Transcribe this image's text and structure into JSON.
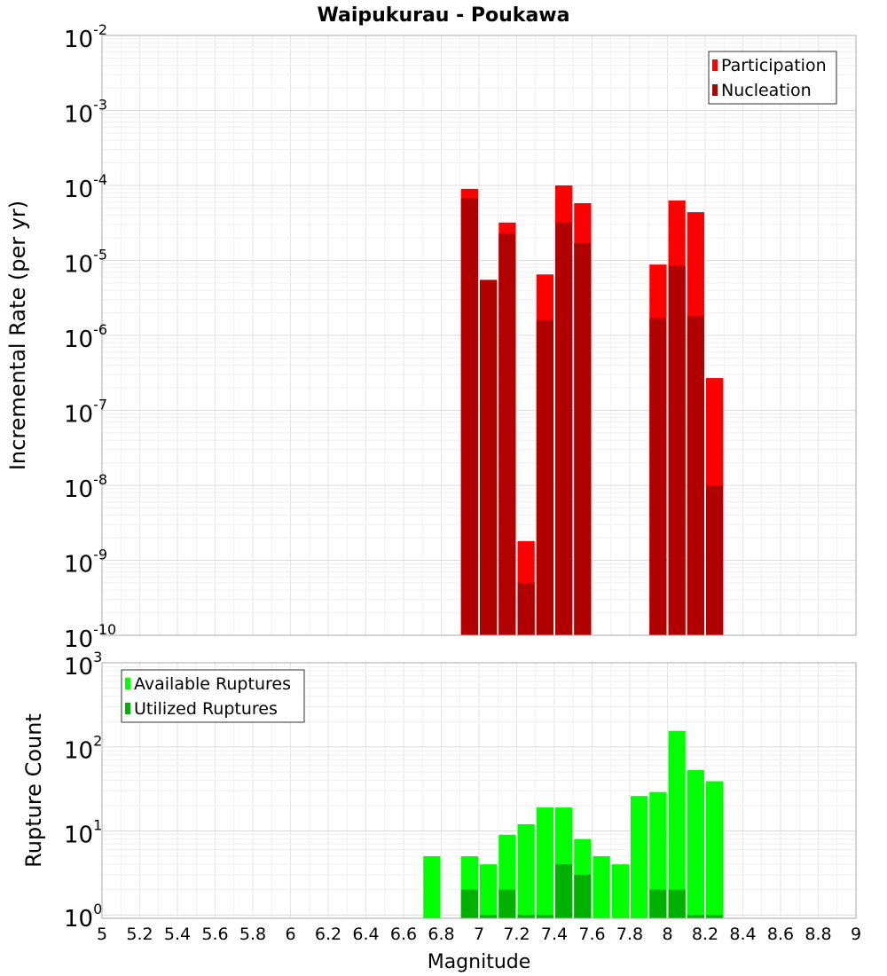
{
  "chart_data": [
    {
      "type": "bar",
      "title": "Waipukurau - Poukawa",
      "xlabel": "",
      "ylabel": "Incremental Rate (per yr)",
      "y_scale": "log",
      "ylim_exponents": [
        -10,
        -2
      ],
      "xlim": [
        5,
        9
      ],
      "grid": true,
      "legend_position": "top-right",
      "bar_width": 0.1,
      "y_tick_base": "10",
      "y_tick_exponents": [
        "-10",
        "-9",
        "-8",
        "-7",
        "-6",
        "-5",
        "-4",
        "-3",
        "-2"
      ],
      "series": [
        {
          "name": "Participation",
          "color": "#ff0000",
          "x": [
            6.95,
            7.05,
            7.15,
            7.25,
            7.35,
            7.45,
            7.55,
            7.95,
            8.05,
            8.15,
            8.25
          ],
          "values": [
            9e-05,
            5.5e-06,
            3.2e-05,
            1.8e-09,
            6.5e-06,
            0.0001,
            5.8e-05,
            8.8e-06,
            6.3e-05,
            4.4e-05,
            2.7e-07
          ]
        },
        {
          "name": "Nucleation",
          "color": "#b00000",
          "x": [
            6.95,
            7.05,
            7.15,
            7.25,
            7.35,
            7.45,
            7.55,
            7.95,
            8.05,
            8.15,
            8.25
          ],
          "values": [
            6.8e-05,
            5.5e-06,
            2.3e-05,
            5e-10,
            1.6e-06,
            3.2e-05,
            1.7e-05,
            1.7e-06,
            8.5e-06,
            1.8e-06,
            1e-08
          ]
        }
      ]
    },
    {
      "type": "bar",
      "title": "",
      "xlabel": "Magnitude",
      "ylabel": "Rupture Count",
      "y_scale": "log",
      "ylim_exponents": [
        -0.04,
        3
      ],
      "xlim": [
        5,
        9
      ],
      "grid": true,
      "legend_position": "top-left",
      "bar_width": 0.1,
      "x_ticks": [
        "5",
        "5.2",
        "5.4",
        "5.6",
        "5.8",
        "6",
        "6.2",
        "6.4",
        "6.6",
        "6.8",
        "7",
        "7.2",
        "7.4",
        "7.6",
        "7.8",
        "8",
        "8.2",
        "8.4",
        "8.6",
        "8.8",
        "9"
      ],
      "y_tick_base": "10",
      "y_tick_exponents": [
        "0",
        "1",
        "2",
        "3"
      ],
      "series": [
        {
          "name": "Available Ruptures",
          "color": "#00ff00",
          "x": [
            6.75,
            6.95,
            7.05,
            7.15,
            7.25,
            7.35,
            7.45,
            7.55,
            7.65,
            7.75,
            7.85,
            7.95,
            8.05,
            8.15,
            8.25
          ],
          "values": [
            5,
            5,
            4,
            9,
            12,
            19,
            19,
            8,
            5,
            4,
            26,
            29,
            155,
            53,
            39
          ]
        },
        {
          "name": "Utilized Ruptures",
          "color": "#00b000",
          "x": [
            6.95,
            7.05,
            7.15,
            7.25,
            7.35,
            7.45,
            7.55,
            7.95,
            8.05,
            8.15,
            8.25
          ],
          "values": [
            2,
            1,
            2,
            1,
            1,
            4,
            3,
            2,
            2,
            1,
            1
          ]
        }
      ]
    }
  ]
}
